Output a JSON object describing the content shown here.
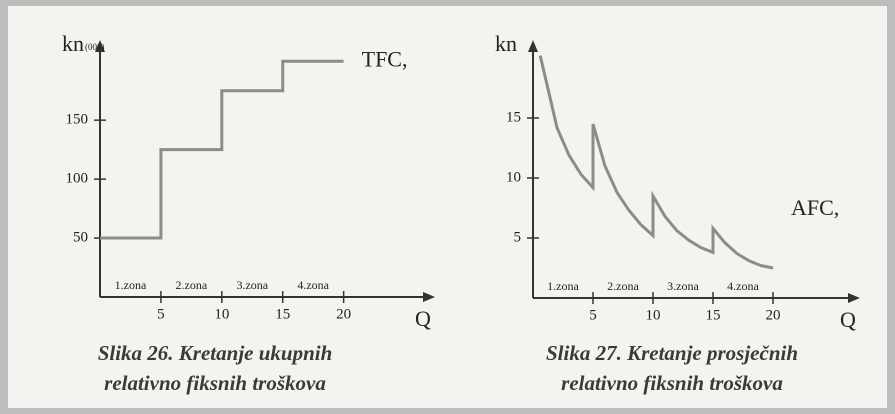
{
  "chart_data": [
    {
      "type": "line",
      "title_lines": [
        "Slika 26. Kretanje ukupnih",
        "relativno fiksnih troškova"
      ],
      "y_label": "kn",
      "y_label_unit": "(000)",
      "x_label": "Q",
      "annotations": [
        "1.zona",
        "2.zona",
        "3.zona",
        "4.zona"
      ],
      "series": [
        {
          "name": "TFC,",
          "color": "#8c8c8c",
          "x": [
            0,
            5,
            5,
            10,
            10,
            15,
            15,
            20
          ],
          "values": [
            50,
            50,
            125,
            125,
            175,
            175,
            200,
            200
          ]
        }
      ],
      "xlim": [
        0,
        27.5
      ],
      "xticks": [
        5,
        10,
        15,
        20
      ],
      "ylim": [
        0,
        218
      ],
      "yticks": [
        50,
        100,
        150
      ]
    },
    {
      "type": "line",
      "title_lines": [
        "Slika 27. Kretanje prosječnih",
        "relativno fiksnih troškova"
      ],
      "y_label": "kn",
      "x_label": "Q",
      "annotations": [
        "1.zona",
        "2.zona",
        "3.zona",
        "4.zona"
      ],
      "series": [
        {
          "name": "AFC,",
          "color": "#8c8c8c",
          "x": [
            0.6,
            1,
            2,
            3,
            4,
            5,
            5,
            6,
            7,
            8,
            9,
            10,
            10,
            11,
            12,
            13,
            14,
            15,
            15,
            16,
            17,
            18,
            19,
            20
          ],
          "values": [
            20.2,
            18.5,
            14.2,
            11.9,
            10.3,
            9.2,
            14.5,
            11,
            8.8,
            7.3,
            6.1,
            5.2,
            8.5,
            6.8,
            5.6,
            4.8,
            4.2,
            3.8,
            5.8,
            4.6,
            3.7,
            3.1,
            2.7,
            2.5
          ]
        }
      ],
      "xlim": [
        0,
        27.25
      ],
      "xticks": [
        5,
        10,
        15,
        20
      ],
      "ylim": [
        0,
        21.5
      ],
      "yticks": [
        5,
        10,
        15
      ]
    }
  ]
}
